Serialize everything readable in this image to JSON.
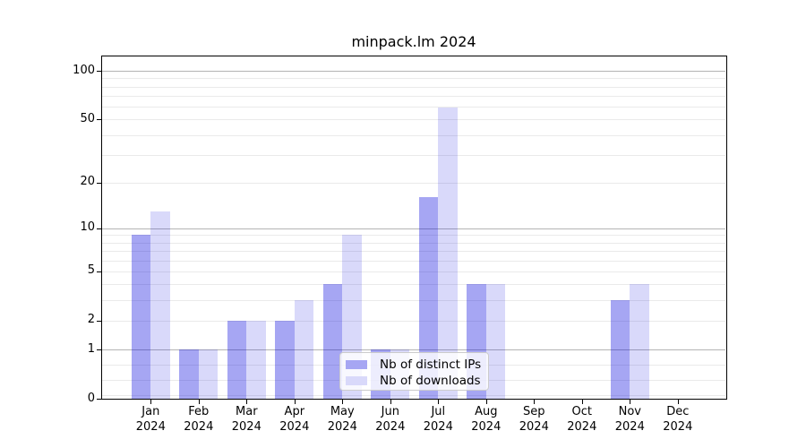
{
  "chart_data": {
    "type": "bar",
    "title": "minpack.lm 2024",
    "year_label": "2024",
    "categories": [
      "Jan",
      "Feb",
      "Mar",
      "Apr",
      "May",
      "Jun",
      "Jul",
      "Aug",
      "Sep",
      "Oct",
      "Nov",
      "Dec"
    ],
    "series": [
      {
        "name": "Nb of distinct IPs",
        "color": "rgba(0,0,220,0.35)",
        "solid_color": "#a6a6f3",
        "values": [
          9,
          1,
          2,
          2,
          4,
          1,
          16,
          4,
          0,
          0,
          3,
          0
        ]
      },
      {
        "name": "Nb of downloads",
        "color": "rgba(0,0,220,0.15)",
        "solid_color": "#d9d9fa",
        "values": [
          13,
          1,
          2,
          3,
          9,
          1,
          59,
          4,
          0,
          0,
          4,
          0
        ]
      }
    ],
    "xlabel": "",
    "ylabel": "",
    "yscale": "log1p",
    "ytick_labels": [
      "0",
      "1",
      "2",
      "5",
      "10",
      "20",
      "50",
      "100"
    ],
    "ytick_values": [
      0,
      1,
      2,
      5,
      10,
      20,
      50,
      100
    ],
    "minor_grid_values": [
      2,
      3,
      4,
      5,
      6,
      7,
      8,
      9,
      20,
      30,
      40,
      50,
      60,
      70,
      80,
      90
    ],
    "major_grid_values": [
      1,
      10,
      100
    ],
    "ylim": [
      0,
      125
    ],
    "grid": true,
    "legend_position": "lower center inside",
    "colors": {
      "major_gridline": "#b4b4b4",
      "minor_gridline": "#eaeaea",
      "axis": "#000000",
      "text": "#000000",
      "legend_border": "#cccccc"
    }
  }
}
